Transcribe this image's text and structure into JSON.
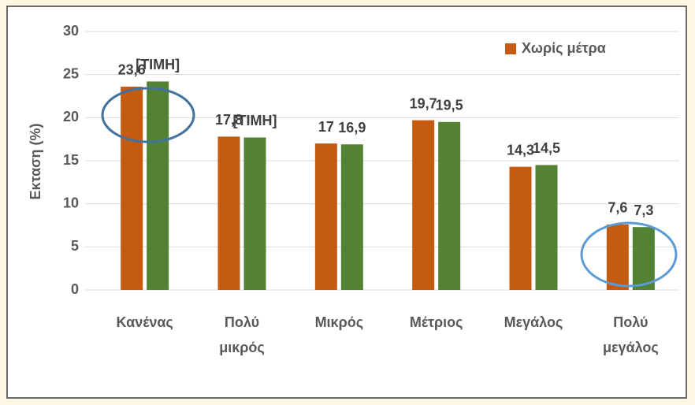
{
  "chart_data": {
    "type": "bar",
    "y_label": "Εκταση (%)",
    "categories": [
      "Κανένας",
      "Πολύ μικρός",
      "Μικρός",
      "Μέτριος",
      "Μεγάλος",
      "Πολύ μεγάλος"
    ],
    "series": [
      {
        "name": "Χωρίς μέτρα",
        "color": "#c55a11",
        "values": [
          23.6,
          17.8,
          17,
          19.7,
          14.3,
          7.6
        ],
        "value_labels": [
          "23,6",
          "17,8",
          "17",
          "19,7",
          "14,3",
          "7,6"
        ]
      },
      {
        "color": "#548235",
        "values": [
          24.2,
          17.7,
          16.9,
          19.5,
          14.5,
          7.3
        ],
        "value_labels": [
          "[ΤΙΜΗ]",
          "[ΤΙΜΗ]",
          "16,9",
          "19,5",
          "14,5",
          "7,3"
        ]
      }
    ],
    "ylim": [
      0,
      30
    ],
    "yticks": [
      0,
      5,
      10,
      15,
      20,
      25,
      30
    ],
    "grid": true,
    "legend": "top-right"
  }
}
